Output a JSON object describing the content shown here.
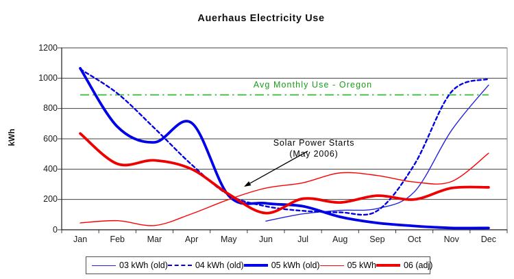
{
  "title": "Auerhaus Electricity Use",
  "y_axis": {
    "title": "kWh",
    "ticks": [
      "1200",
      "1000",
      "800",
      "600",
      "400",
      "200",
      "0"
    ]
  },
  "x_axis": {
    "months": [
      "Jan",
      "Feb",
      "Mar",
      "Apr",
      "May",
      "Jun",
      "Jul",
      "Aug",
      "Sep",
      "Oct",
      "Nov",
      "Dec"
    ]
  },
  "annotations": {
    "avg_line": {
      "label": "Avg Monthly Use - Oregon",
      "value": 890,
      "line_color": "#3fbf3f",
      "text_color": "#1a9c1a"
    },
    "solar": {
      "line1": "Solar Power Starts",
      "line2": "(May 2006)",
      "arrow_from": [
        449,
        221
      ],
      "arrow_to": [
        356,
        273
      ]
    }
  },
  "legend": [
    {
      "label": "03 kWh (old)",
      "style": "thin",
      "color": "#2222dd"
    },
    {
      "label": "04 kWh (old)",
      "style": "dashed",
      "color": "#0000e6"
    },
    {
      "label": "05 kWh (old)",
      "style": "thick",
      "color": "#0000e6"
    },
    {
      "label": "05 kWh",
      "style": "thin",
      "color": "#ff0000"
    },
    {
      "label": "06 (adj)",
      "style": "thick",
      "color": "#ee0000"
    }
  ],
  "chart_data": {
    "type": "line",
    "title": "Auerhaus Electricity Use",
    "xlabel": "",
    "ylabel": "kWh",
    "ylim": [
      0,
      1200
    ],
    "ytick_step": 200,
    "grid": true,
    "legend_position": "bottom",
    "categories": [
      "Jan",
      "Feb",
      "Mar",
      "Apr",
      "May",
      "Jun",
      "Jul",
      "Aug",
      "Sep",
      "Oct",
      "Nov",
      "Dec"
    ],
    "series": [
      {
        "name": "03 kWh (old)",
        "color": "#2222dd",
        "width": 1.4,
        "dash": null,
        "values": [
          null,
          null,
          null,
          null,
          null,
          57,
          105,
          128,
          140,
          250,
          655,
          955
        ]
      },
      {
        "name": "04 kWh (old)",
        "color": "#0000e6",
        "width": 2.4,
        "dash": "5 4",
        "values": [
          1060,
          900,
          670,
          430,
          230,
          155,
          125,
          115,
          125,
          430,
          910,
          995
        ]
      },
      {
        "name": "05 kWh (old)",
        "color": "#0000e6",
        "width": 3.8,
        "dash": null,
        "values": [
          1065,
          680,
          577,
          705,
          225,
          175,
          155,
          85,
          45,
          25,
          12,
          12
        ]
      },
      {
        "name": "05 kWh",
        "color": "#ff0000",
        "width": 1.4,
        "dash": null,
        "values": [
          45,
          60,
          28,
          105,
          200,
          275,
          310,
          375,
          358,
          315,
          318,
          505
        ]
      },
      {
        "name": "06 (adj)",
        "color": "#ee0000",
        "width": 3.8,
        "dash": null,
        "values": [
          635,
          435,
          458,
          400,
          235,
          110,
          205,
          180,
          225,
          200,
          275,
          280
        ]
      }
    ],
    "reference_line": {
      "label": "Avg Monthly Use - Oregon",
      "value": 890
    }
  }
}
